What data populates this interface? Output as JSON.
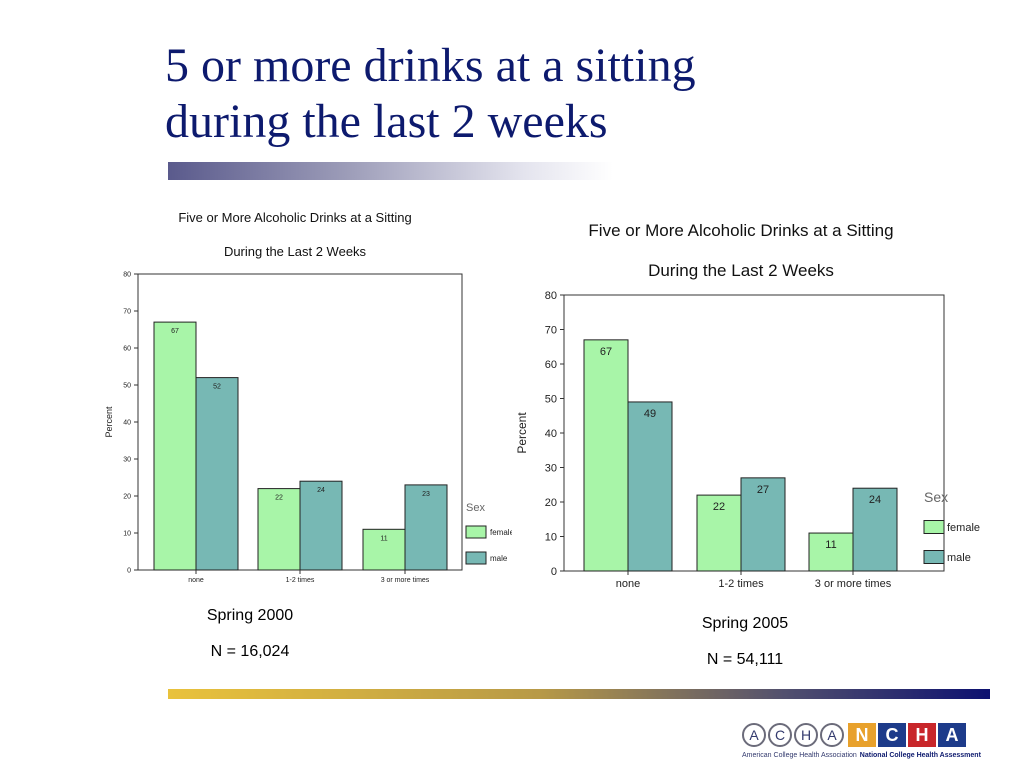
{
  "slide": {
    "title": "5 or more drinks at a sitting\nduring the last 2 weeks"
  },
  "colors": {
    "title": "#0d1a6e",
    "female": "#a8f5a8",
    "male": "#77b8b4"
  },
  "captions": [
    {
      "season": "Spring 2000",
      "n": "N = 16,024"
    },
    {
      "season": "Spring 2005",
      "n": "N = 54,111"
    }
  ],
  "logo": {
    "acha_letters": [
      "A",
      "C",
      "H",
      "A"
    ],
    "ncha_letters": [
      "N",
      "C",
      "H",
      "A"
    ],
    "acha_name": "American College Health Association",
    "ncha_name": "National College Health Assessment"
  },
  "chart_data": [
    {
      "type": "bar",
      "title": "Five or More Alcoholic Drinks at a Sitting",
      "subtitle": "During the Last 2 Weeks",
      "xlabel": "",
      "ylabel": "Percent",
      "categories": [
        "none",
        "1-2 times",
        "3 or more times"
      ],
      "series": [
        {
          "name": "female",
          "values": [
            67,
            22,
            11
          ]
        },
        {
          "name": "male",
          "values": [
            52,
            24,
            23
          ]
        }
      ],
      "ylim": [
        0,
        80
      ],
      "yticks": [
        0,
        10,
        20,
        30,
        40,
        50,
        60,
        70,
        80
      ],
      "legend_title": "Sex",
      "legend_position": "right",
      "grid": false
    },
    {
      "type": "bar",
      "title": "Five or More Alcoholic Drinks at a Sitting",
      "subtitle": "During the Last 2 Weeks",
      "xlabel": "",
      "ylabel": "Percent",
      "categories": [
        "none",
        "1-2 times",
        "3 or more times"
      ],
      "series": [
        {
          "name": "female",
          "values": [
            67,
            22,
            11
          ]
        },
        {
          "name": "male",
          "values": [
            49,
            27,
            24
          ]
        }
      ],
      "ylim": [
        0,
        80
      ],
      "yticks": [
        0,
        10,
        20,
        30,
        40,
        50,
        60,
        70,
        80
      ],
      "legend_title": "Sex",
      "legend_position": "right",
      "grid": false
    }
  ]
}
